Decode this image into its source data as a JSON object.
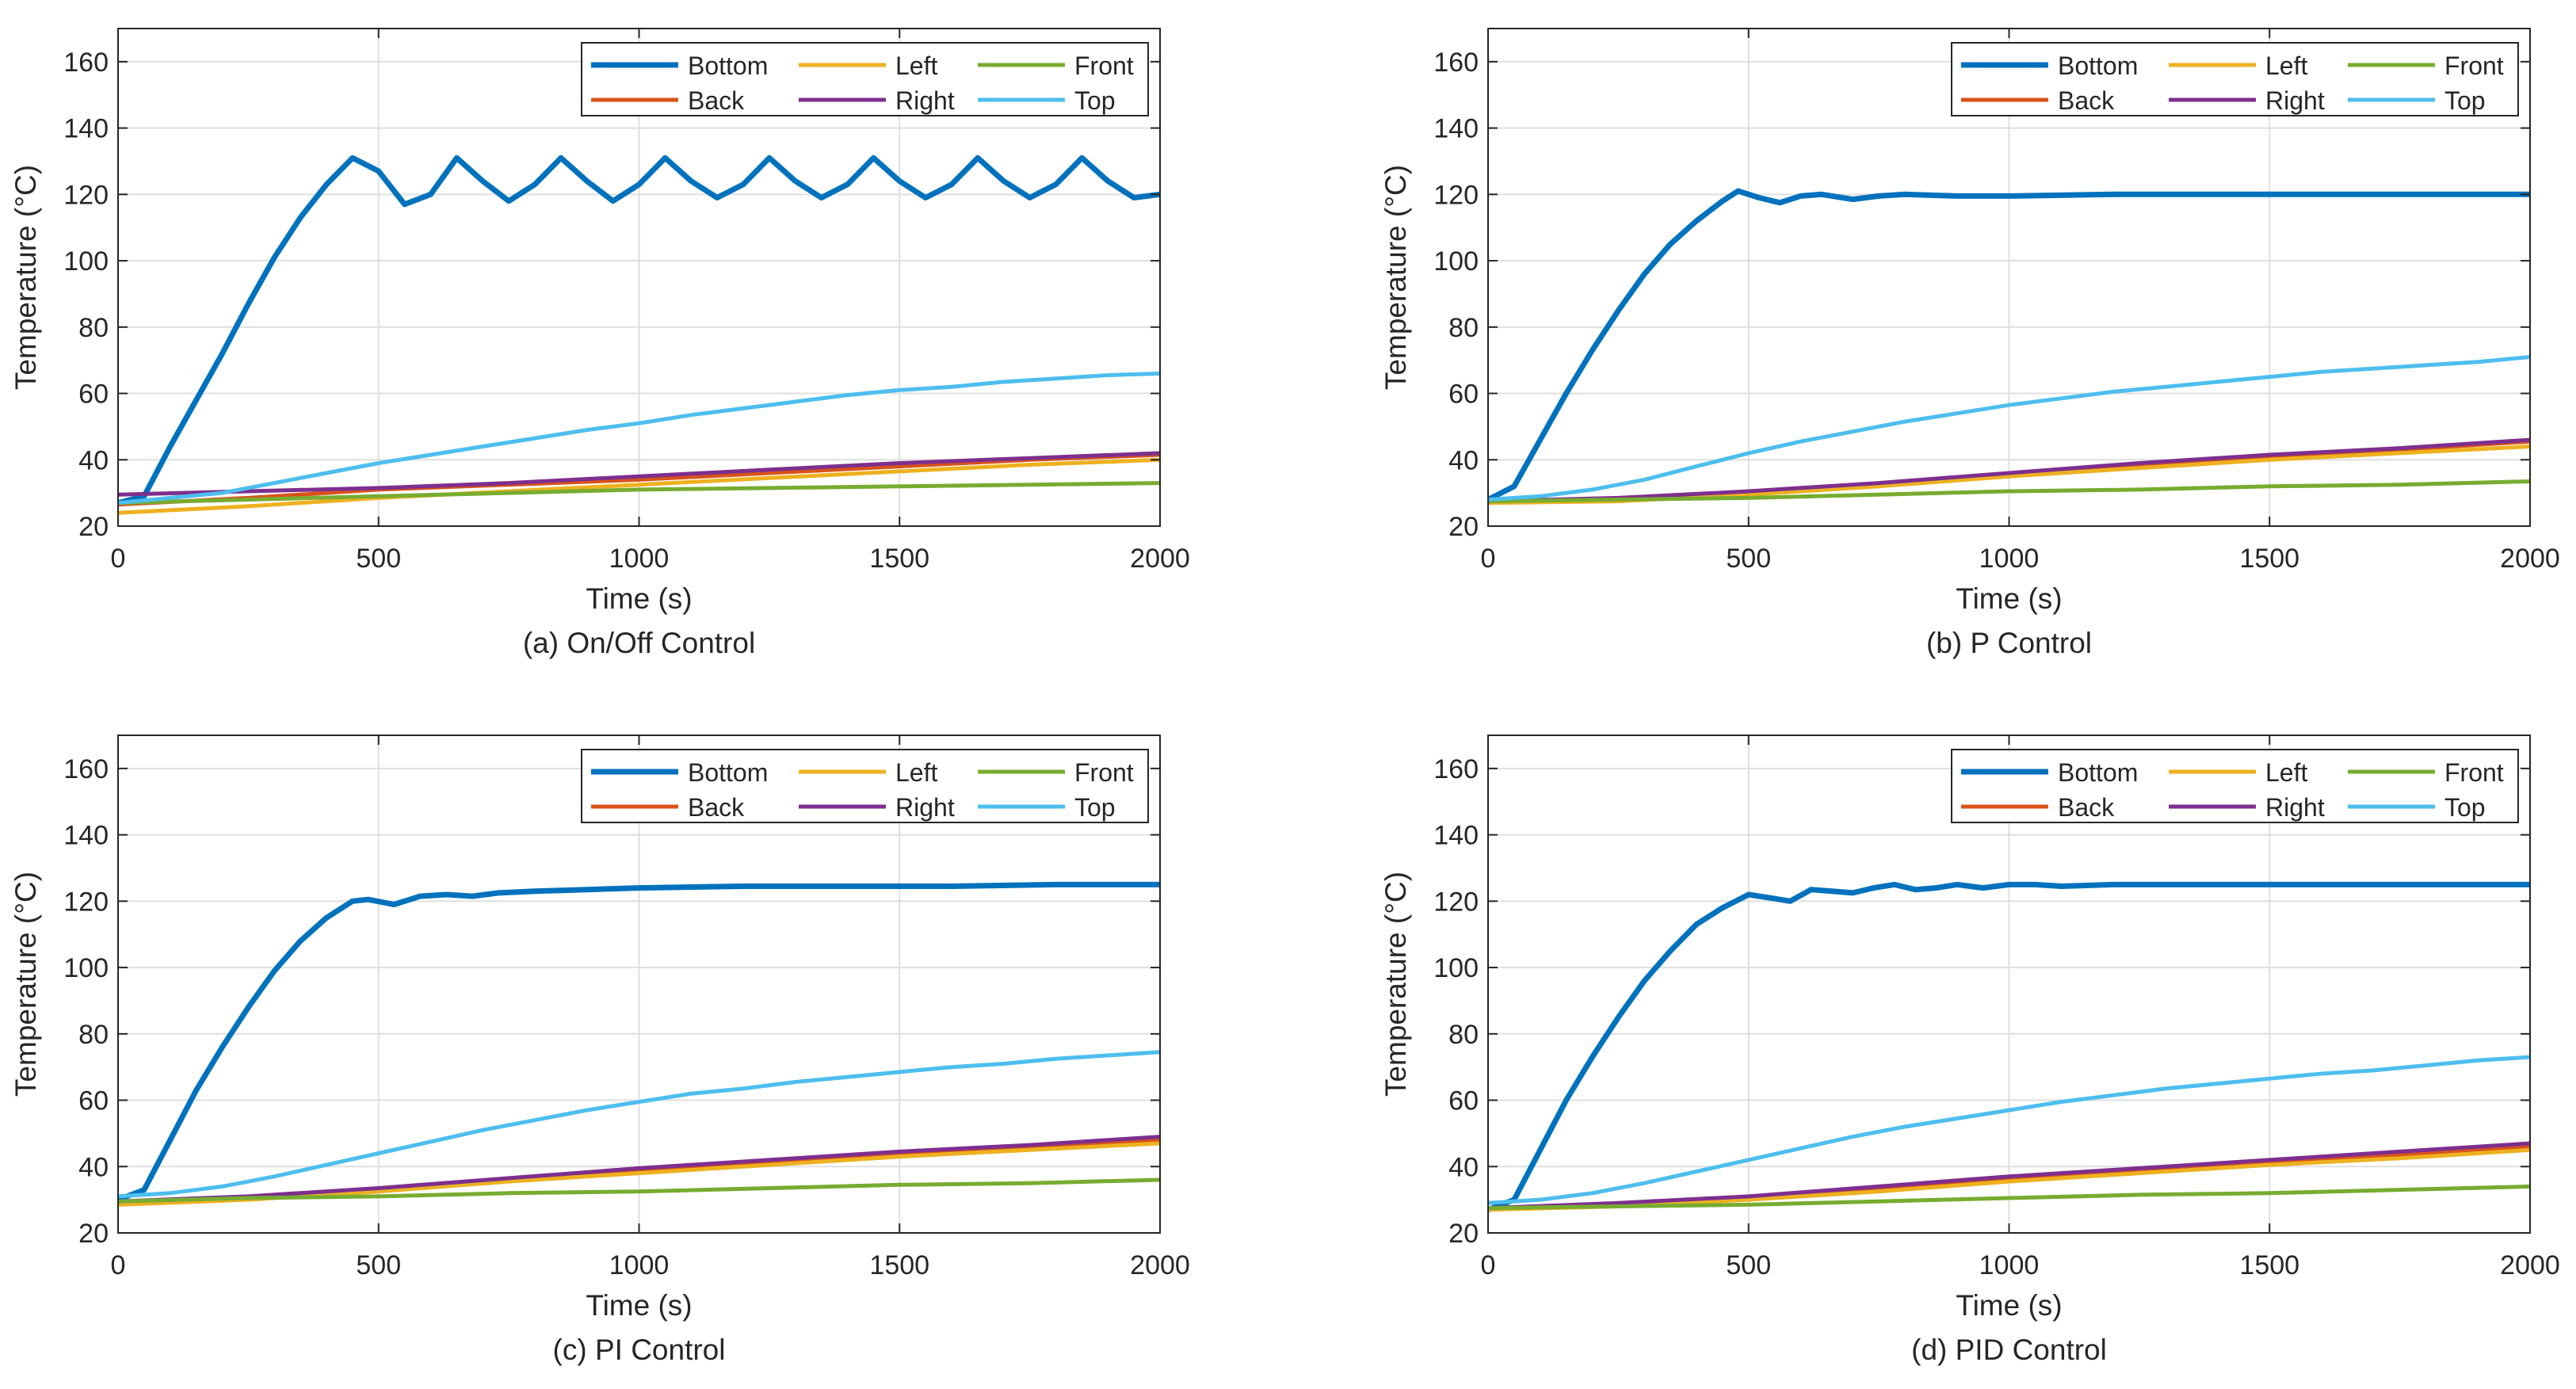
{
  "chart_data": [
    {
      "type": "line",
      "caption": "(a) On/Off Control",
      "xlabel": "Time (s)",
      "ylabel": "Temperature (°C)",
      "xlim": [
        0,
        2000
      ],
      "ylim": [
        20,
        170
      ],
      "xticks": [
        0,
        500,
        1000,
        1500,
        2000
      ],
      "yticks": [
        20,
        40,
        60,
        80,
        100,
        120,
        140,
        160
      ],
      "grid": true,
      "legend_position": "top-right",
      "series": [
        {
          "name": "Bottom",
          "color": "#0072BD",
          "x": [
            0,
            50,
            100,
            150,
            200,
            250,
            300,
            350,
            400,
            450,
            500,
            550,
            600,
            650,
            700,
            750,
            800,
            850,
            900,
            950,
            1000,
            1050,
            1100,
            1150,
            1200,
            1250,
            1300,
            1350,
            1400,
            1450,
            1500,
            1550,
            1600,
            1650,
            1700,
            1750,
            1800,
            1850,
            1900,
            1950,
            2000
          ],
          "values": [
            27,
            29,
            44,
            58,
            72,
            87,
            101,
            113,
            123,
            131,
            127,
            117,
            120,
            131,
            124,
            118,
            123,
            131,
            124,
            118,
            123,
            131,
            124,
            119,
            123,
            131,
            124,
            119,
            123,
            131,
            124,
            119,
            123,
            131,
            124,
            119,
            123,
            131,
            124,
            119,
            120
          ]
        },
        {
          "name": "Back",
          "color": "#D95319",
          "x": [
            0,
            250,
            500,
            750,
            1000,
            1250,
            1500,
            1750,
            2000
          ],
          "values": [
            26.5,
            28.5,
            31,
            32.5,
            34,
            36,
            38,
            40,
            41.5
          ]
        },
        {
          "name": "Left",
          "color": "#EDB120",
          "x": [
            0,
            250,
            500,
            750,
            1000,
            1250,
            1500,
            1750,
            2000
          ],
          "values": [
            24,
            26,
            28.5,
            30.5,
            32.5,
            34.5,
            36.5,
            38.5,
            40
          ]
        },
        {
          "name": "Right",
          "color": "#7E2F8E",
          "x": [
            0,
            250,
            500,
            750,
            1000,
            1250,
            1500,
            1750,
            2000
          ],
          "values": [
            29.5,
            30.5,
            31.5,
            33,
            35,
            37,
            39,
            40.5,
            42
          ]
        },
        {
          "name": "Front",
          "color": "#77AC30",
          "x": [
            0,
            250,
            500,
            750,
            1000,
            1250,
            1500,
            1750,
            2000
          ],
          "values": [
            27,
            28,
            29,
            30,
            31,
            31.5,
            32,
            32.5,
            33
          ]
        },
        {
          "name": "Top",
          "color": "#4DBEEE",
          "x": [
            0,
            100,
            200,
            300,
            400,
            500,
            600,
            700,
            800,
            900,
            1000,
            1100,
            1200,
            1300,
            1400,
            1500,
            1600,
            1700,
            1800,
            1900,
            2000
          ],
          "values": [
            27,
            28.5,
            30,
            33,
            36,
            39,
            41.5,
            44,
            46.5,
            49,
            51,
            53.5,
            55.5,
            57.5,
            59.5,
            61,
            62,
            63.5,
            64.5,
            65.5,
            66
          ]
        }
      ]
    },
    {
      "type": "line",
      "caption": "(b) P Control",
      "xlabel": "Time (s)",
      "ylabel": "Temperature (°C)",
      "xlim": [
        0,
        2000
      ],
      "ylim": [
        20,
        170
      ],
      "xticks": [
        0,
        500,
        1000,
        1500,
        2000
      ],
      "yticks": [
        20,
        40,
        60,
        80,
        100,
        120,
        140,
        160
      ],
      "grid": true,
      "legend_position": "top-right",
      "series": [
        {
          "name": "Bottom",
          "color": "#0072BD",
          "x": [
            0,
            50,
            100,
            150,
            200,
            250,
            300,
            350,
            400,
            450,
            480,
            520,
            560,
            600,
            640,
            700,
            750,
            800,
            900,
            1000,
            1200,
            1400,
            1600,
            1800,
            2000
          ],
          "values": [
            28,
            32,
            46,
            60,
            73,
            85,
            96,
            105,
            112,
            118,
            121,
            119,
            117.5,
            119.5,
            120,
            118.5,
            119.5,
            120,
            119.5,
            119.5,
            120,
            120,
            120,
            120,
            120
          ]
        },
        {
          "name": "Back",
          "color": "#D95319",
          "x": [
            0,
            250,
            500,
            750,
            1000,
            1250,
            1500,
            1750,
            2000
          ],
          "values": [
            27,
            28,
            30,
            32.5,
            35.5,
            38.5,
            41,
            43,
            45.5
          ]
        },
        {
          "name": "Left",
          "color": "#EDB120",
          "x": [
            0,
            250,
            500,
            750,
            1000,
            1250,
            1500,
            1750,
            2000
          ],
          "values": [
            27,
            27.5,
            29.5,
            32,
            35,
            37.5,
            40,
            42,
            44
          ]
        },
        {
          "name": "Right",
          "color": "#7E2F8E",
          "x": [
            0,
            250,
            500,
            750,
            1000,
            1250,
            1500,
            1750,
            2000
          ],
          "values": [
            27.5,
            28.5,
            30.5,
            33,
            36,
            39,
            41.5,
            43.5,
            46
          ]
        },
        {
          "name": "Front",
          "color": "#77AC30",
          "x": [
            0,
            250,
            500,
            750,
            1000,
            1250,
            1500,
            1750,
            2000
          ],
          "values": [
            27.5,
            28,
            28.5,
            29.5,
            30.5,
            31,
            32,
            32.5,
            33.5
          ]
        },
        {
          "name": "Top",
          "color": "#4DBEEE",
          "x": [
            0,
            100,
            200,
            300,
            400,
            500,
            600,
            700,
            800,
            900,
            1000,
            1100,
            1200,
            1300,
            1400,
            1500,
            1600,
            1700,
            1800,
            1900,
            2000
          ],
          "values": [
            28,
            29,
            31,
            34,
            38,
            42,
            45.5,
            48.5,
            51.5,
            54,
            56.5,
            58.5,
            60.5,
            62,
            63.5,
            65,
            66.5,
            67.5,
            68.5,
            69.5,
            71
          ]
        }
      ]
    },
    {
      "type": "line",
      "caption": "(c) PI Control",
      "xlabel": "Time (s)",
      "ylabel": "Temperature (°C)",
      "xlim": [
        0,
        2000
      ],
      "ylim": [
        20,
        170
      ],
      "xticks": [
        0,
        500,
        1000,
        1500,
        2000
      ],
      "yticks": [
        20,
        40,
        60,
        80,
        100,
        120,
        140,
        160
      ],
      "grid": true,
      "legend_position": "top-right",
      "series": [
        {
          "name": "Bottom",
          "color": "#0072BD",
          "x": [
            0,
            50,
            100,
            150,
            200,
            250,
            300,
            350,
            400,
            450,
            480,
            530,
            580,
            630,
            680,
            730,
            800,
            900,
            1000,
            1200,
            1400,
            1600,
            1800,
            2000
          ],
          "values": [
            30,
            33,
            48,
            63,
            76,
            88,
            99,
            108,
            115,
            120,
            120.5,
            119,
            121.5,
            122,
            121.5,
            122.5,
            123,
            123.5,
            124,
            124.5,
            124.5,
            124.5,
            125,
            125
          ]
        },
        {
          "name": "Back",
          "color": "#D95319",
          "x": [
            0,
            250,
            500,
            750,
            1000,
            1250,
            1500,
            1750,
            2000
          ],
          "values": [
            29,
            30.5,
            33,
            36,
            39,
            41.5,
            44,
            46,
            48
          ]
        },
        {
          "name": "Left",
          "color": "#EDB120",
          "x": [
            0,
            250,
            500,
            750,
            1000,
            1250,
            1500,
            1750,
            2000
          ],
          "values": [
            28.5,
            30,
            32.5,
            35.5,
            38,
            40.5,
            43,
            45,
            47
          ]
        },
        {
          "name": "Right",
          "color": "#7E2F8E",
          "x": [
            0,
            250,
            500,
            750,
            1000,
            1250,
            1500,
            1750,
            2000
          ],
          "values": [
            29.5,
            31,
            33.5,
            36.5,
            39.5,
            42,
            44.5,
            46.5,
            49
          ]
        },
        {
          "name": "Front",
          "color": "#77AC30",
          "x": [
            0,
            250,
            500,
            750,
            1000,
            1250,
            1500,
            1750,
            2000
          ],
          "values": [
            29.5,
            30.5,
            31,
            32,
            32.5,
            33.5,
            34.5,
            35,
            36
          ]
        },
        {
          "name": "Top",
          "color": "#4DBEEE",
          "x": [
            0,
            100,
            200,
            300,
            400,
            500,
            600,
            700,
            800,
            900,
            1000,
            1100,
            1200,
            1300,
            1400,
            1500,
            1600,
            1700,
            1800,
            1900,
            2000
          ],
          "values": [
            31,
            32,
            34,
            37,
            40.5,
            44,
            47.5,
            51,
            54,
            57,
            59.5,
            62,
            63.5,
            65.5,
            67,
            68.5,
            70,
            71,
            72.5,
            73.5,
            74.5
          ]
        }
      ]
    },
    {
      "type": "line",
      "caption": "(d) PID Control",
      "xlabel": "Time (s)",
      "ylabel": "Temperature (°C)",
      "xlim": [
        0,
        2000
      ],
      "ylim": [
        20,
        170
      ],
      "xticks": [
        0,
        500,
        1000,
        1500,
        2000
      ],
      "yticks": [
        20,
        40,
        60,
        80,
        100,
        120,
        140,
        160
      ],
      "grid": true,
      "legend_position": "top-right",
      "series": [
        {
          "name": "Bottom",
          "color": "#0072BD",
          "x": [
            0,
            50,
            100,
            150,
            200,
            250,
            300,
            350,
            400,
            450,
            500,
            540,
            580,
            620,
            660,
            700,
            740,
            780,
            820,
            860,
            900,
            950,
            1000,
            1050,
            1100,
            1200,
            1300,
            1400,
            1500,
            1600,
            1700,
            1800,
            1900,
            2000
          ],
          "values": [
            27,
            30,
            45,
            60,
            73,
            85,
            96,
            105,
            113,
            118,
            122,
            121,
            120,
            123.5,
            123,
            122.5,
            124,
            125,
            123.5,
            124,
            125,
            124,
            125,
            125,
            124.5,
            125,
            125,
            125,
            125,
            125,
            125,
            125,
            125,
            125
          ]
        },
        {
          "name": "Back",
          "color": "#D95319",
          "x": [
            0,
            250,
            500,
            750,
            1000,
            1250,
            1500,
            1750,
            2000
          ],
          "values": [
            27.5,
            28.5,
            30.5,
            33.5,
            36.5,
            39,
            41.5,
            43.5,
            46
          ]
        },
        {
          "name": "Left",
          "color": "#EDB120",
          "x": [
            0,
            250,
            500,
            750,
            1000,
            1250,
            1500,
            1750,
            2000
          ],
          "values": [
            27,
            28,
            30,
            32.5,
            35.5,
            38,
            40.5,
            42.5,
            45
          ]
        },
        {
          "name": "Right",
          "color": "#7E2F8E",
          "x": [
            0,
            250,
            500,
            750,
            1000,
            1250,
            1500,
            1750,
            2000
          ],
          "values": [
            27.5,
            29,
            31,
            34,
            37,
            39.5,
            42,
            44.5,
            47
          ]
        },
        {
          "name": "Front",
          "color": "#77AC30",
          "x": [
            0,
            250,
            500,
            750,
            1000,
            1250,
            1500,
            1750,
            2000
          ],
          "values": [
            27.5,
            28,
            28.5,
            29.5,
            30.5,
            31.5,
            32,
            33,
            34
          ]
        },
        {
          "name": "Top",
          "color": "#4DBEEE",
          "x": [
            0,
            100,
            200,
            300,
            400,
            500,
            600,
            700,
            800,
            900,
            1000,
            1100,
            1200,
            1300,
            1400,
            1500,
            1600,
            1700,
            1800,
            1900,
            2000
          ],
          "values": [
            29,
            30,
            32,
            35,
            38.5,
            42,
            45.5,
            49,
            52,
            54.5,
            57,
            59.5,
            61.5,
            63.5,
            65,
            66.5,
            68,
            69,
            70.5,
            72,
            73
          ]
        }
      ]
    }
  ],
  "legend_order": [
    "Bottom",
    "Left",
    "Front",
    "Back",
    "Right",
    "Top"
  ]
}
